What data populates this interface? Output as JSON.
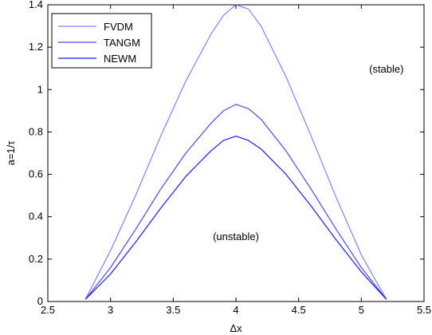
{
  "chart_data": {
    "type": "line",
    "xlabel": "Δx",
    "ylabel": "a=1/τ",
    "xlim": [
      2.5,
      5.5
    ],
    "ylim": [
      0,
      1.4
    ],
    "xticks": [
      "2.5",
      "3",
      "3.5",
      "4",
      "4.5",
      "5",
      "5.5"
    ],
    "yticks": [
      "0",
      "0.2",
      "0.4",
      "0.6",
      "0.8",
      "1",
      "1.2",
      "1.4"
    ],
    "grid": false,
    "legend_position": "top-left",
    "annotations": [
      {
        "text": "(stable)",
        "x": 5.2,
        "y": 1.08
      },
      {
        "text": "(unstable)",
        "x": 4.0,
        "y": 0.29
      }
    ],
    "series": [
      {
        "name": "FVDM",
        "color": "#8080ff",
        "x": [
          2.8,
          3.0,
          3.2,
          3.4,
          3.6,
          3.8,
          3.9,
          4.0,
          4.1,
          4.2,
          4.4,
          4.6,
          4.8,
          5.0,
          5.2
        ],
        "y": [
          0.01,
          0.24,
          0.5,
          0.78,
          1.04,
          1.26,
          1.35,
          1.4,
          1.38,
          1.3,
          1.06,
          0.78,
          0.49,
          0.22,
          0.01
        ]
      },
      {
        "name": "TANGM",
        "color": "#4a4af0",
        "x": [
          2.8,
          3.0,
          3.2,
          3.4,
          3.6,
          3.8,
          3.9,
          4.0,
          4.1,
          4.2,
          4.4,
          4.6,
          4.8,
          5.0,
          5.2
        ],
        "y": [
          0.01,
          0.16,
          0.34,
          0.53,
          0.7,
          0.84,
          0.9,
          0.93,
          0.91,
          0.86,
          0.71,
          0.53,
          0.34,
          0.16,
          0.01
        ]
      },
      {
        "name": "NEWM",
        "color": "#1a1aff",
        "x": [
          2.8,
          3.0,
          3.2,
          3.4,
          3.6,
          3.8,
          3.9,
          4.0,
          4.1,
          4.2,
          4.4,
          4.6,
          4.8,
          5.0,
          5.2
        ],
        "y": [
          0.01,
          0.13,
          0.28,
          0.44,
          0.59,
          0.71,
          0.76,
          0.78,
          0.76,
          0.72,
          0.6,
          0.45,
          0.29,
          0.14,
          0.01
        ]
      }
    ]
  }
}
